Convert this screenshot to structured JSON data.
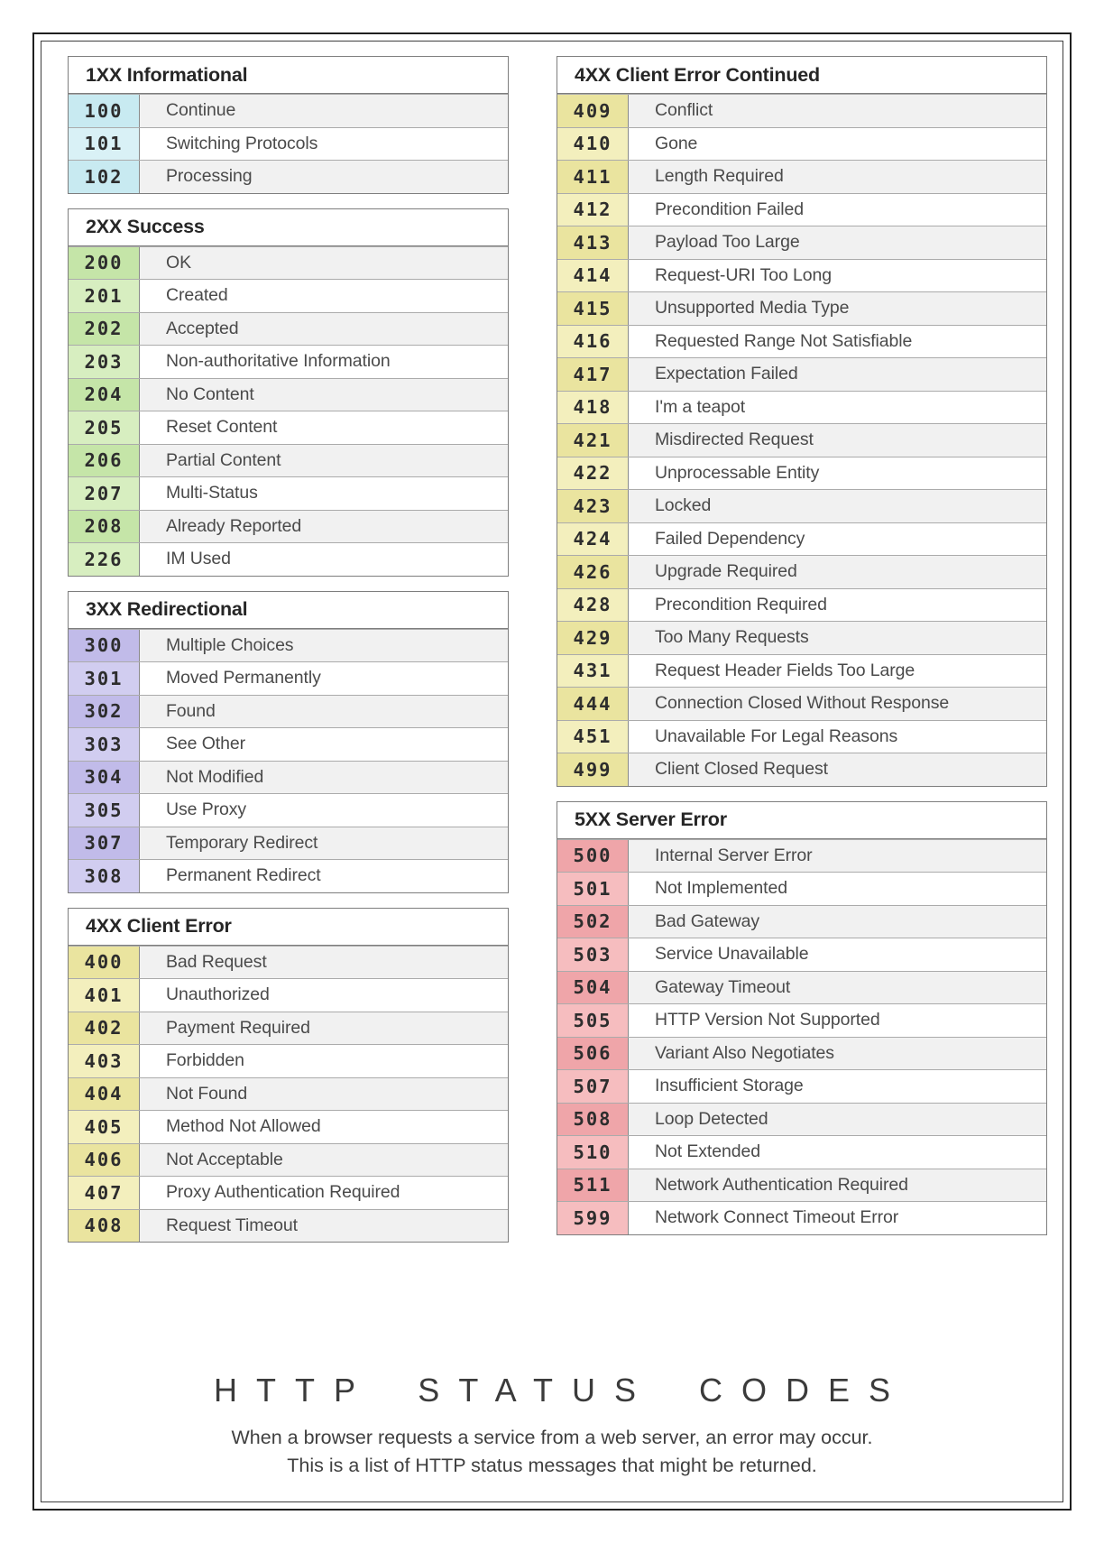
{
  "palette": {
    "informational": {
      "code_dark": "#c8eaf1",
      "code_light": "#d9f1f6"
    },
    "success": {
      "code_dark": "#c5e5a8",
      "code_light": "#d7eec0"
    },
    "redirection": {
      "code_dark": "#c1bbe9",
      "code_light": "#d1cdf0"
    },
    "client_error": {
      "code_dark": "#eae49f",
      "code_light": "#f3efbd"
    },
    "server_error": {
      "code_dark": "#efa5a9",
      "code_light": "#f6bdbf"
    },
    "row_stripe": "#f1f1f1",
    "row_white": "#ffffff"
  },
  "columns": [
    {
      "sections": [
        {
          "title": "1XX Informational",
          "palette": "informational",
          "rows": [
            {
              "code": "100",
              "label": "Continue"
            },
            {
              "code": "101",
              "label": "Switching Protocols"
            },
            {
              "code": "102",
              "label": "Processing"
            }
          ]
        },
        {
          "title": "2XX Success",
          "palette": "success",
          "rows": [
            {
              "code": "200",
              "label": "OK"
            },
            {
              "code": "201",
              "label": "Created"
            },
            {
              "code": "202",
              "label": "Accepted"
            },
            {
              "code": "203",
              "label": "Non-authoritative Information"
            },
            {
              "code": "204",
              "label": "No Content"
            },
            {
              "code": "205",
              "label": "Reset Content"
            },
            {
              "code": "206",
              "label": "Partial Content"
            },
            {
              "code": "207",
              "label": "Multi-Status"
            },
            {
              "code": "208",
              "label": "Already Reported"
            },
            {
              "code": "226",
              "label": "IM Used"
            }
          ]
        },
        {
          "title": "3XX Redirectional",
          "palette": "redirection",
          "rows": [
            {
              "code": "300",
              "label": "Multiple Choices"
            },
            {
              "code": "301",
              "label": "Moved Permanently"
            },
            {
              "code": "302",
              "label": "Found"
            },
            {
              "code": "303",
              "label": "See Other"
            },
            {
              "code": "304",
              "label": "Not Modified"
            },
            {
              "code": "305",
              "label": "Use Proxy"
            },
            {
              "code": "307",
              "label": "Temporary Redirect"
            },
            {
              "code": "308",
              "label": "Permanent Redirect"
            }
          ]
        },
        {
          "title": "4XX Client Error",
          "palette": "client_error",
          "rows": [
            {
              "code": "400",
              "label": "Bad Request"
            },
            {
              "code": "401",
              "label": "Unauthorized"
            },
            {
              "code": "402",
              "label": "Payment Required"
            },
            {
              "code": "403",
              "label": "Forbidden"
            },
            {
              "code": "404",
              "label": "Not Found"
            },
            {
              "code": "405",
              "label": "Method Not Allowed"
            },
            {
              "code": "406",
              "label": "Not Acceptable"
            },
            {
              "code": "407",
              "label": "Proxy Authentication Required"
            },
            {
              "code": "408",
              "label": "Request Timeout"
            }
          ]
        }
      ]
    },
    {
      "sections": [
        {
          "title": "4XX Client Error Continued",
          "palette": "client_error",
          "rows": [
            {
              "code": "409",
              "label": "Conflict"
            },
            {
              "code": "410",
              "label": "Gone"
            },
            {
              "code": "411",
              "label": "Length Required"
            },
            {
              "code": "412",
              "label": "Precondition Failed"
            },
            {
              "code": "413",
              "label": "Payload Too Large"
            },
            {
              "code": "414",
              "label": "Request-URI Too Long"
            },
            {
              "code": "415",
              "label": "Unsupported Media Type"
            },
            {
              "code": "416",
              "label": "Requested Range Not Satisfiable"
            },
            {
              "code": "417",
              "label": "Expectation Failed"
            },
            {
              "code": "418",
              "label": "I'm a teapot"
            },
            {
              "code": "421",
              "label": "Misdirected Request"
            },
            {
              "code": "422",
              "label": "Unprocessable Entity"
            },
            {
              "code": "423",
              "label": "Locked"
            },
            {
              "code": "424",
              "label": "Failed Dependency"
            },
            {
              "code": "426",
              "label": "Upgrade Required"
            },
            {
              "code": "428",
              "label": "Precondition Required"
            },
            {
              "code": "429",
              "label": "Too Many Requests"
            },
            {
              "code": "431",
              "label": "Request Header Fields Too Large"
            },
            {
              "code": "444",
              "label": "Connection Closed Without Response"
            },
            {
              "code": "451",
              "label": "Unavailable For Legal Reasons"
            },
            {
              "code": "499",
              "label": "Client Closed Request"
            }
          ]
        },
        {
          "title": "5XX Server Error",
          "palette": "server_error",
          "rows": [
            {
              "code": "500",
              "label": "Internal Server Error"
            },
            {
              "code": "501",
              "label": "Not Implemented"
            },
            {
              "code": "502",
              "label": "Bad Gateway"
            },
            {
              "code": "503",
              "label": "Service Unavailable"
            },
            {
              "code": "504",
              "label": "Gateway Timeout"
            },
            {
              "code": "505",
              "label": "HTTP Version Not Supported"
            },
            {
              "code": "506",
              "label": "Variant Also Negotiates"
            },
            {
              "code": "507",
              "label": "Insufficient Storage"
            },
            {
              "code": "508",
              "label": "Loop Detected"
            },
            {
              "code": "510",
              "label": "Not Extended"
            },
            {
              "code": "511",
              "label": "Network Authentication Required"
            },
            {
              "code": "599",
              "label": "Network Connect Timeout Error"
            }
          ]
        }
      ]
    }
  ],
  "footer": {
    "title": "HTTP STATUS CODES",
    "line1": "When a browser requests a service from a web server, an error may occur.",
    "line2": "This is a list of HTTP status messages that might be returned."
  }
}
